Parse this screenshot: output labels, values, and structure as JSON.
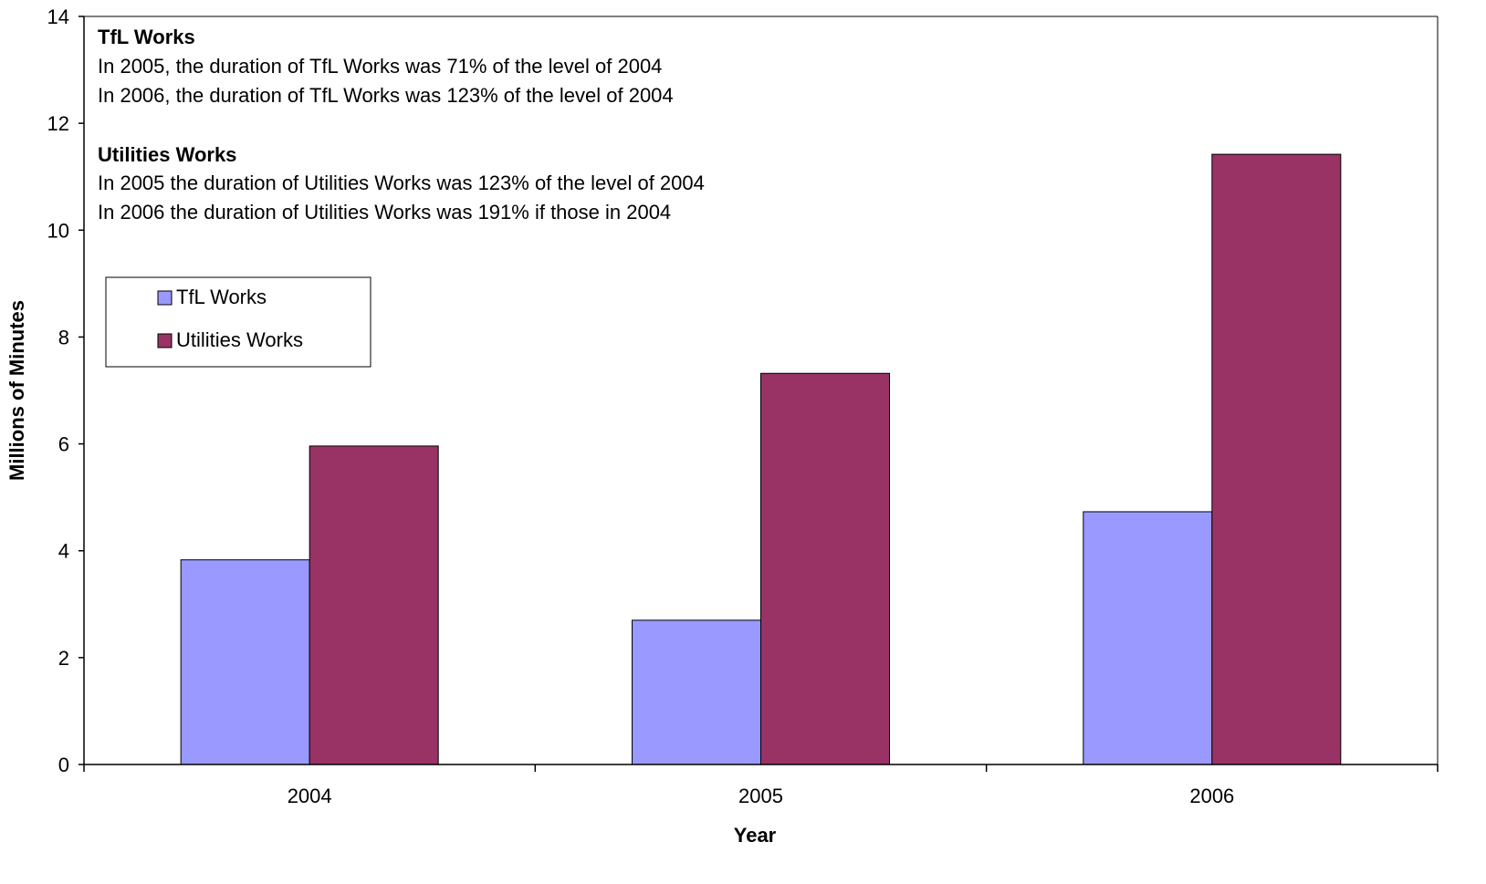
{
  "chart_data": {
    "type": "bar",
    "categories": [
      "2004",
      "2005",
      "2006"
    ],
    "series": [
      {
        "name": "TfL Works",
        "values": [
          3.83,
          2.7,
          4.73
        ],
        "color": "#9999FF"
      },
      {
        "name": "Utilities Works",
        "values": [
          5.96,
          7.32,
          11.42
        ],
        "color": "#993366"
      }
    ],
    "xlabel": "Year",
    "ylabel": "Millions of Minutes",
    "ylim": [
      0,
      14
    ],
    "yticks": [
      "0",
      "2",
      "4",
      "6",
      "8",
      "10",
      "12",
      "14"
    ],
    "grid": false,
    "legend_position": "left",
    "annotations": [
      {
        "heading": "TfL Works",
        "lines": [
          "In 2005, the duration of TfL Works was 71% of the level of 2004",
          "In 2006, the duration of TfL Works was 123% of the level of 2004"
        ]
      },
      {
        "heading": "Utilities Works",
        "lines": [
          "In 2005 the duration of Utilities Works was 123% of the level of 2004",
          "In 2006 the duration of Utilities Works was 191% if those in 2004"
        ]
      }
    ]
  }
}
